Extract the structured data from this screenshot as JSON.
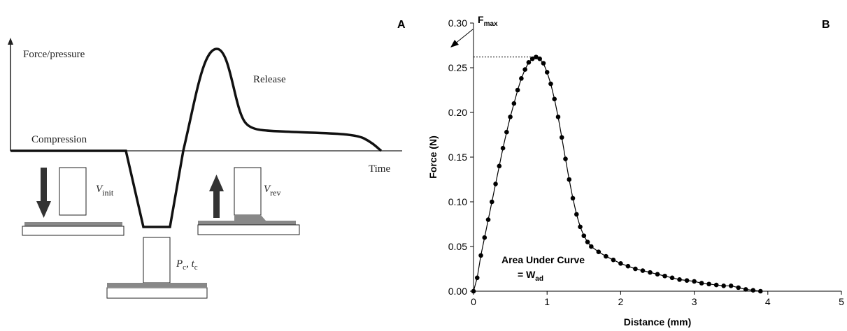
{
  "diagram": {
    "panel_label": "A",
    "y_axis_label": "Force/pressure",
    "x_axis_label": "Time",
    "phase_labels": [
      "Compression",
      "Release"
    ],
    "v_init": {
      "symbol": "V",
      "subscript": "init"
    },
    "v_rev": {
      "symbol": "V",
      "subscript": "rev"
    },
    "contact": {
      "p": "P",
      "p_sub": "c",
      "sep": ", ",
      "t": "t",
      "t_sub": "c"
    }
  },
  "chart_data": {
    "type": "line",
    "panel_label": "B",
    "xlabel": "Distance (mm)",
    "ylabel": "Force (N)",
    "annotations": {
      "fmax": {
        "text": "F",
        "subscript": "max"
      },
      "area": "Area Under Curve",
      "wad": {
        "text": "= W",
        "subscript": "ad"
      }
    },
    "color": "#000000",
    "markers": true,
    "x": [
      0,
      0.05,
      0.1,
      0.15,
      0.2,
      0.25,
      0.3,
      0.35,
      0.4,
      0.45,
      0.5,
      0.55,
      0.6,
      0.65,
      0.7,
      0.75,
      0.8,
      0.85,
      0.9,
      0.95,
      1.0,
      1.05,
      1.1,
      1.15,
      1.2,
      1.25,
      1.3,
      1.35,
      1.4,
      1.45,
      1.5,
      1.55,
      1.6,
      1.7,
      1.8,
      1.9,
      2.0,
      2.1,
      2.2,
      2.3,
      2.4,
      2.5,
      2.6,
      2.7,
      2.8,
      2.9,
      3.0,
      3.1,
      3.2,
      3.3,
      3.4,
      3.5,
      3.6,
      3.7,
      3.8,
      3.9
    ],
    "values": [
      0,
      0.015,
      0.04,
      0.06,
      0.08,
      0.1,
      0.12,
      0.14,
      0.16,
      0.178,
      0.195,
      0.21,
      0.225,
      0.238,
      0.248,
      0.256,
      0.26,
      0.262,
      0.26,
      0.255,
      0.245,
      0.232,
      0.215,
      0.195,
      0.172,
      0.148,
      0.125,
      0.104,
      0.086,
      0.072,
      0.062,
      0.055,
      0.05,
      0.044,
      0.039,
      0.035,
      0.031,
      0.028,
      0.025,
      0.023,
      0.021,
      0.019,
      0.017,
      0.015,
      0.013,
      0.012,
      0.011,
      0.009,
      0.008,
      0.007,
      0.006,
      0.006,
      0.004,
      0.002,
      0.001,
      0
    ],
    "xlim": [
      0,
      5
    ],
    "xticks": [
      0,
      1,
      2,
      3,
      4,
      5
    ],
    "ylim": [
      0,
      0.3
    ],
    "yticks": [
      {
        "value": 0,
        "label": "0.00"
      },
      0.05,
      {
        "value": 0.1,
        "label": "0.10"
      },
      0.15,
      {
        "value": 0.2,
        "label": "0.20"
      },
      0.25,
      {
        "value": 0.3,
        "label": "0.30"
      }
    ]
  }
}
